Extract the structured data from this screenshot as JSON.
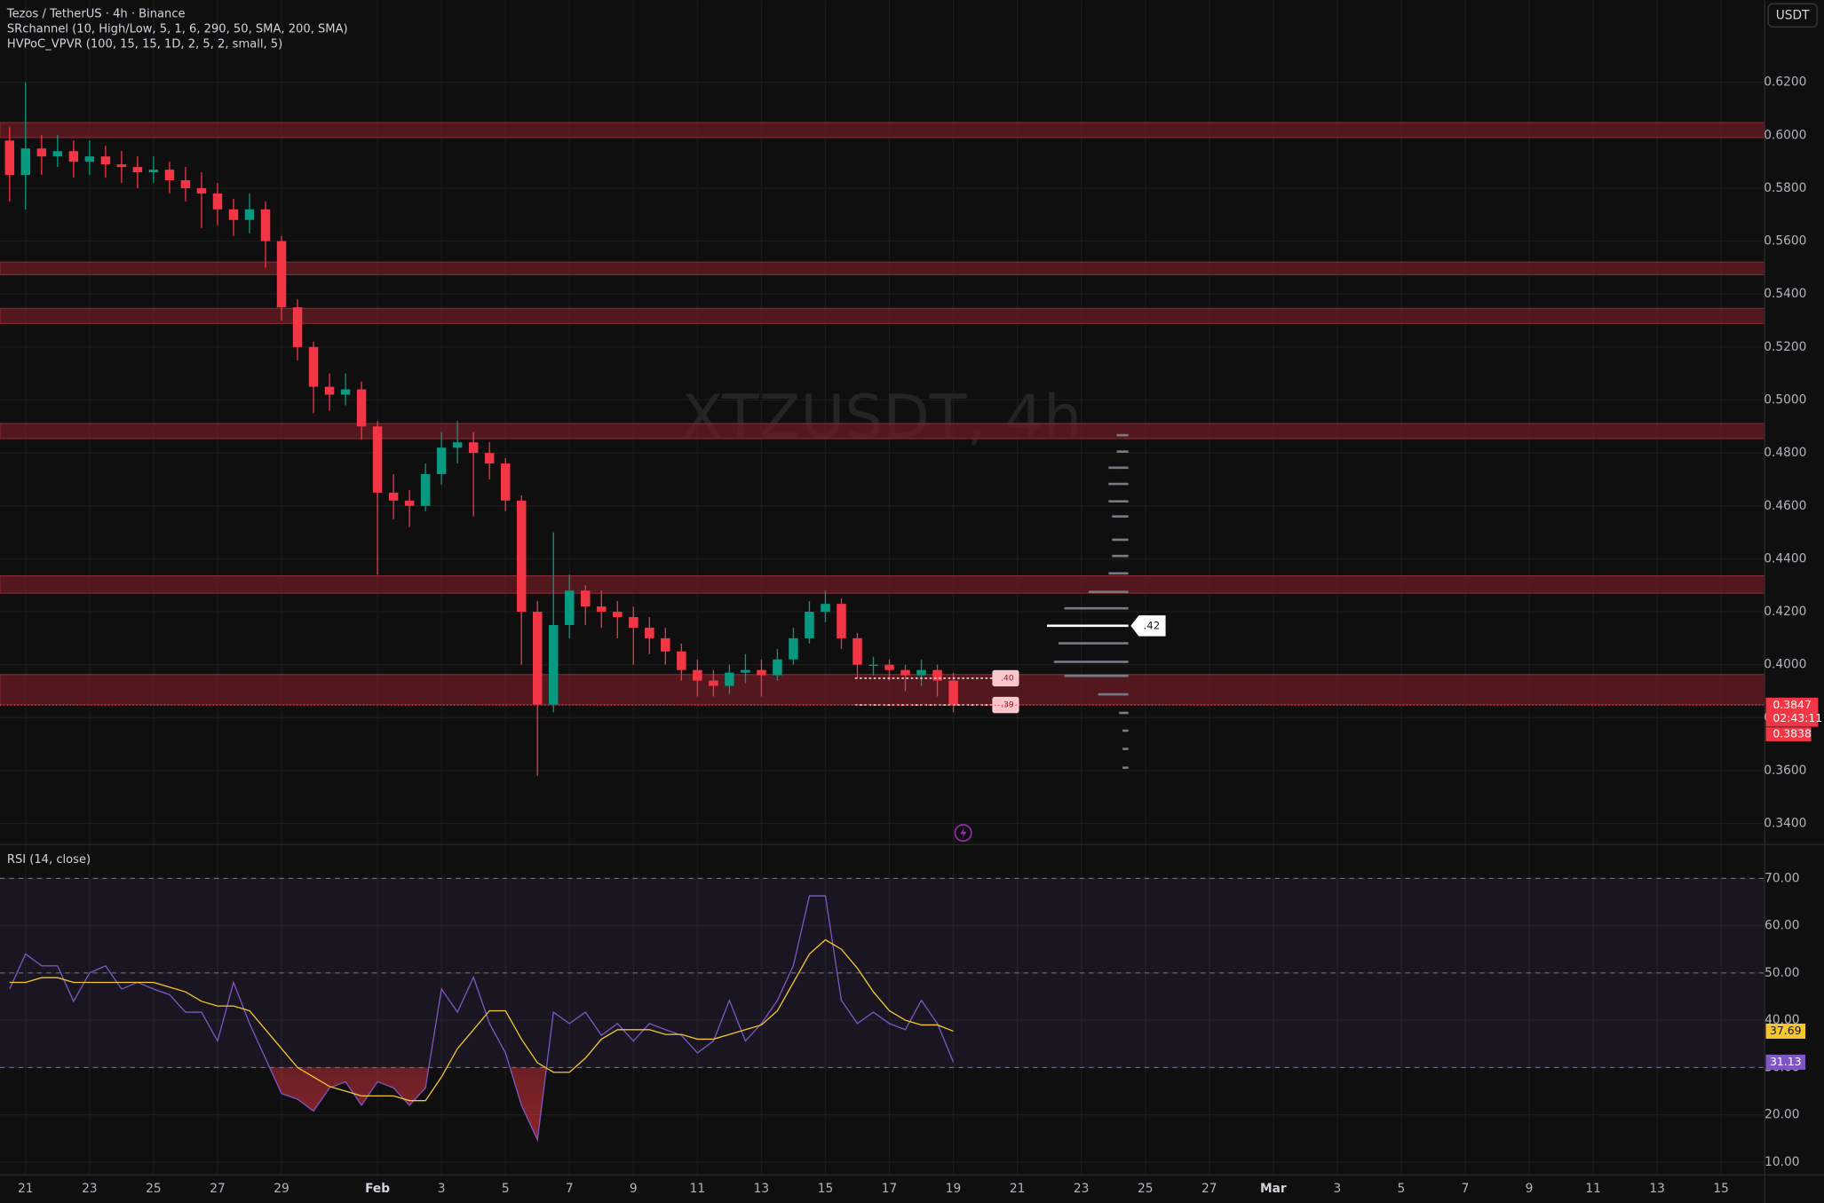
{
  "currency_button": "USDT",
  "chart_data": [
    {
      "type": "candlestick",
      "title": "Tezos / TetherUS · 4h · Binance",
      "indicators": [
        "SRchannel (10, High/Low, 5, 1, 6, 290, 50, SMA, 200, SMA)",
        "HVPoC_VPVR (100, 15, 15, 1D, 2, 5, 2, small, 5)"
      ],
      "watermark": "XTZUSDT, 4h",
      "up_color": "#089981",
      "down_color": "#f23645",
      "xlim": [
        -0.8,
        54.36
      ],
      "xticks": [
        {
          "value": 0,
          "label": "21"
        },
        {
          "value": 2,
          "label": "23"
        },
        {
          "value": 4,
          "label": "25"
        },
        {
          "value": 6,
          "label": "27"
        },
        {
          "value": 8,
          "label": "29"
        },
        {
          "value": 11,
          "label": "Feb"
        },
        {
          "value": 13,
          "label": "3"
        },
        {
          "value": 15,
          "label": "5"
        },
        {
          "value": 17,
          "label": "7"
        },
        {
          "value": 19,
          "label": "9"
        },
        {
          "value": 21,
          "label": "11"
        },
        {
          "value": 23,
          "label": "13"
        },
        {
          "value": 25,
          "label": "15"
        },
        {
          "value": 27,
          "label": "17"
        },
        {
          "value": 29,
          "label": "19"
        },
        {
          "value": 31,
          "label": "21"
        },
        {
          "value": 33,
          "label": "23"
        },
        {
          "value": 35,
          "label": "25"
        },
        {
          "value": 37,
          "label": "27"
        },
        {
          "value": 39,
          "label": "Mar"
        },
        {
          "value": 41,
          "label": "3"
        },
        {
          "value": 43,
          "label": "5"
        },
        {
          "value": 45,
          "label": "7"
        },
        {
          "value": 47,
          "label": "9"
        },
        {
          "value": 49,
          "label": "11"
        },
        {
          "value": 51,
          "label": "13"
        },
        {
          "value": 53,
          "label": "15"
        }
      ],
      "ylim": [
        0.3325,
        0.651
      ],
      "yticks": [
        {
          "value": 0.34,
          "label": "0.3400"
        },
        {
          "value": 0.36,
          "label": "0.3600"
        },
        {
          "value": 0.38,
          "label": "0.3800"
        },
        {
          "value": 0.4,
          "label": "0.4000"
        },
        {
          "value": 0.42,
          "label": "0.4200"
        },
        {
          "value": 0.44,
          "label": "0.4400"
        },
        {
          "value": 0.46,
          "label": "0.4600"
        },
        {
          "value": 0.48,
          "label": "0.4800"
        },
        {
          "value": 0.5,
          "label": "0.5000"
        },
        {
          "value": 0.52,
          "label": "0.5200"
        },
        {
          "value": 0.54,
          "label": "0.5400"
        },
        {
          "value": 0.56,
          "label": "0.5600"
        },
        {
          "value": 0.58,
          "label": "0.5800"
        },
        {
          "value": 0.6,
          "label": "0.6000"
        },
        {
          "value": 0.62,
          "label": "0.6200"
        }
      ],
      "grid": true,
      "x": [
        -0.5,
        0,
        0.5,
        1,
        1.5,
        2,
        2.5,
        3,
        3.5,
        4,
        4.5,
        5,
        5.5,
        6,
        6.5,
        7,
        7.5,
        8,
        8.5,
        9,
        9.5,
        10,
        10.5,
        11,
        11.5,
        12,
        12.5,
        13,
        13.5,
        14,
        14.5,
        15,
        15.5,
        16,
        16.5,
        17,
        17.5,
        18,
        18.5,
        19,
        19.5,
        20,
        20.5,
        21,
        21.5,
        22,
        22.5,
        23,
        23.5,
        24,
        24.5,
        25,
        25.5,
        26,
        26.5,
        27,
        27.5,
        28,
        28.5,
        29
      ],
      "open": [
        0.598,
        0.585,
        0.595,
        0.592,
        0.594,
        0.59,
        0.592,
        0.589,
        0.588,
        0.586,
        0.587,
        0.583,
        0.58,
        0.578,
        0.572,
        0.568,
        0.572,
        0.56,
        0.535,
        0.52,
        0.505,
        0.502,
        0.504,
        0.49,
        0.465,
        0.462,
        0.46,
        0.472,
        0.482,
        0.484,
        0.48,
        0.476,
        0.462,
        0.42,
        0.385,
        0.415,
        0.428,
        0.422,
        0.42,
        0.418,
        0.414,
        0.41,
        0.405,
        0.398,
        0.394,
        0.392,
        0.397,
        0.398,
        0.396,
        0.402,
        0.41,
        0.42,
        0.423,
        0.41,
        0.4,
        0.4,
        0.398,
        0.396,
        0.398,
        0.394
      ],
      "high": [
        0.603,
        0.62,
        0.6,
        0.6,
        0.598,
        0.598,
        0.596,
        0.594,
        0.592,
        0.592,
        0.59,
        0.588,
        0.586,
        0.582,
        0.576,
        0.578,
        0.575,
        0.562,
        0.538,
        0.522,
        0.51,
        0.51,
        0.507,
        0.492,
        0.472,
        0.466,
        0.476,
        0.488,
        0.492,
        0.488,
        0.484,
        0.478,
        0.464,
        0.424,
        0.45,
        0.434,
        0.43,
        0.428,
        0.424,
        0.422,
        0.418,
        0.414,
        0.408,
        0.402,
        0.398,
        0.4,
        0.404,
        0.402,
        0.406,
        0.414,
        0.424,
        0.428,
        0.425,
        0.412,
        0.403,
        0.402,
        0.4,
        0.402,
        0.4,
        0.397
      ],
      "low": [
        0.575,
        0.572,
        0.585,
        0.588,
        0.584,
        0.585,
        0.584,
        0.582,
        0.58,
        0.582,
        0.578,
        0.575,
        0.565,
        0.566,
        0.562,
        0.563,
        0.55,
        0.53,
        0.515,
        0.495,
        0.496,
        0.498,
        0.485,
        0.434,
        0.455,
        0.452,
        0.458,
        0.468,
        0.476,
        0.456,
        0.47,
        0.458,
        0.4,
        0.358,
        0.382,
        0.41,
        0.415,
        0.414,
        0.41,
        0.4,
        0.404,
        0.4,
        0.394,
        0.388,
        0.388,
        0.389,
        0.393,
        0.388,
        0.394,
        0.4,
        0.408,
        0.416,
        0.406,
        0.395,
        0.396,
        0.394,
        0.39,
        0.392,
        0.388,
        0.382
      ],
      "close": [
        0.585,
        0.595,
        0.592,
        0.594,
        0.59,
        0.592,
        0.589,
        0.588,
        0.586,
        0.587,
        0.583,
        0.58,
        0.578,
        0.572,
        0.568,
        0.572,
        0.56,
        0.535,
        0.52,
        0.505,
        0.502,
        0.504,
        0.49,
        0.465,
        0.462,
        0.46,
        0.472,
        0.482,
        0.484,
        0.48,
        0.476,
        0.462,
        0.42,
        0.385,
        0.415,
        0.428,
        0.422,
        0.42,
        0.418,
        0.414,
        0.41,
        0.405,
        0.398,
        0.394,
        0.392,
        0.397,
        0.398,
        0.396,
        0.402,
        0.41,
        0.42,
        0.423,
        0.41,
        0.4,
        0.4,
        0.398,
        0.396,
        0.398,
        0.394,
        0.3847
      ],
      "countdown": "02:43:11",
      "second_price_tag": 0.3838,
      "zones": [
        {
          "low": 0.5991,
          "high": 0.6048
        },
        {
          "low": 0.5473,
          "high": 0.5521
        },
        {
          "low": 0.5289,
          "high": 0.5346
        },
        {
          "low": 0.4854,
          "high": 0.4911
        },
        {
          "low": 0.427,
          "high": 0.4336
        },
        {
          "low": 0.3849,
          "high": 0.3963
        }
      ],
      "zone_color": "#6b1c24",
      "volume_profile": {
        "levels": [
          0.4867,
          0.4805,
          0.4744,
          0.4683,
          0.4617,
          0.456,
          0.4472,
          0.4411,
          0.4345,
          0.4275,
          0.4213,
          0.4147,
          0.4081,
          0.4011,
          0.3958,
          0.3888,
          0.3818,
          0.3751,
          0.3682,
          0.3611
        ],
        "volumes": [
          10,
          10,
          17,
          17,
          17,
          14,
          14,
          14,
          17,
          34,
          55,
          70,
          60,
          64,
          55,
          26,
          8,
          5,
          5,
          5
        ],
        "poc_label": ".42"
      },
      "level_labels": [
        ".40",
        ".39"
      ]
    },
    {
      "type": "line",
      "title": "RSI (14, close)",
      "ylim": [
        7.3,
        76.9
      ],
      "yticks": [
        {
          "value": 10,
          "label": "10.00"
        },
        {
          "value": 20,
          "label": "20.00"
        },
        {
          "value": 30,
          "label": "30.00"
        },
        {
          "value": 40,
          "label": "40.00"
        },
        {
          "value": 50,
          "label": "50.00"
        },
        {
          "value": 60,
          "label": "60.00"
        },
        {
          "value": 70,
          "label": "70.00"
        }
      ],
      "band": [
        30,
        70
      ],
      "midline": 50,
      "series": [
        {
          "color": "#7e57c2",
          "values": [
            46.6,
            54.0,
            51.5,
            51.5,
            44.0,
            50.0,
            51.5,
            46.6,
            48.0,
            46.6,
            45.4,
            41.7,
            41.7,
            35.6,
            48.0,
            39.3,
            31.9,
            24.5,
            23.3,
            20.8,
            25.7,
            27.0,
            22.0,
            27.0,
            25.7,
            22.0,
            25.7,
            46.6,
            41.7,
            49.1,
            39.3,
            33.1,
            22.0,
            14.7,
            41.7,
            39.3,
            41.7,
            36.8,
            39.3,
            35.6,
            39.3,
            38.0,
            36.8,
            33.1,
            35.6,
            44.2,
            35.6,
            39.3,
            44.2,
            51.6,
            66.3,
            66.3,
            44.2,
            39.3,
            41.7,
            39.3,
            38.0,
            44.2,
            39.3,
            31.13
          ]
        },
        {
          "color": "#f7c530",
          "values": [
            48,
            48,
            49,
            49,
            48,
            48,
            48,
            48,
            48,
            48,
            47,
            46,
            44,
            43,
            43,
            42,
            38,
            34,
            30,
            28,
            26,
            25,
            24,
            24,
            24,
            23,
            23,
            28,
            34,
            38,
            42,
            42,
            36,
            31,
            29,
            29,
            32,
            36,
            38,
            38,
            38,
            37,
            37,
            36,
            36,
            37,
            38,
            39,
            42,
            48,
            54,
            57,
            55,
            51,
            46,
            42,
            40,
            39,
            39,
            37.69
          ]
        }
      ]
    }
  ]
}
